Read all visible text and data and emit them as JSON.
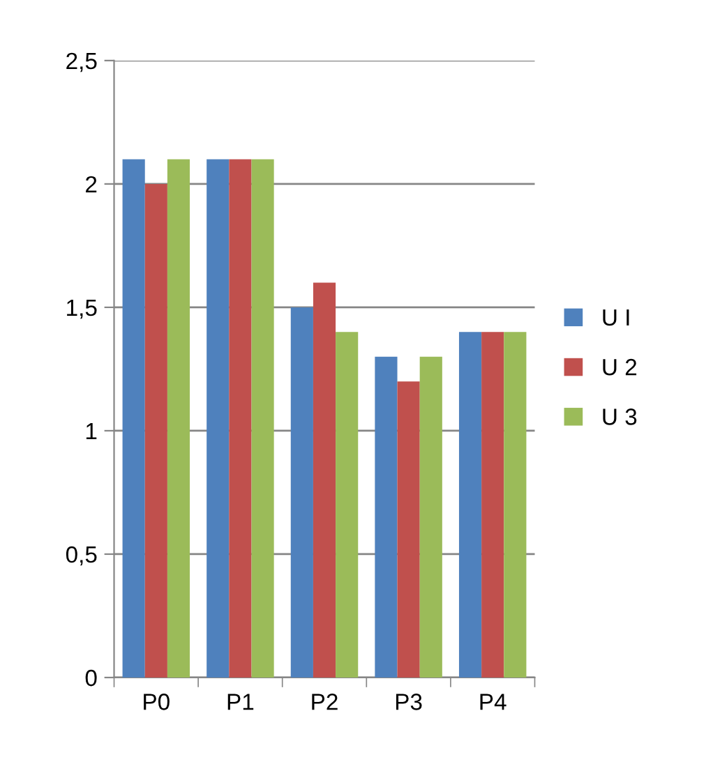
{
  "chart_data": {
    "type": "bar",
    "categories": [
      "P0",
      "P1",
      "P2",
      "P3",
      "P4"
    ],
    "series": [
      {
        "name": "U I",
        "color": "#4f81bd",
        "values": [
          2.1,
          2.1,
          1.5,
          1.3,
          1.4
        ]
      },
      {
        "name": "U 2",
        "color": "#c0504d",
        "values": [
          2.0,
          2.1,
          1.6,
          1.2,
          1.4
        ]
      },
      {
        "name": "U 3",
        "color": "#9bbb59",
        "values": [
          2.1,
          2.1,
          1.4,
          1.3,
          1.4
        ]
      }
    ],
    "ylim": [
      0,
      2.5
    ],
    "yticks": [
      {
        "value": 0,
        "label": "0"
      },
      {
        "value": 0.5,
        "label": "0,5"
      },
      {
        "value": 1,
        "label": "1"
      },
      {
        "value": 1.5,
        "label": "1,5"
      },
      {
        "value": 2,
        "label": "2"
      },
      {
        "value": 2.5,
        "label": "2,5"
      }
    ],
    "grid": "y",
    "legend": "right"
  }
}
